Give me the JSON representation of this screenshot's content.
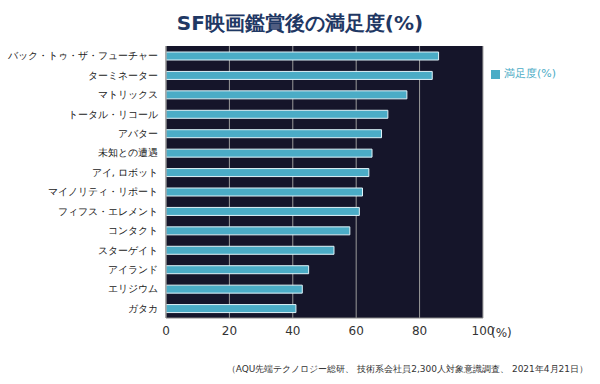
{
  "chart_data": {
    "type": "bar",
    "orientation": "horizontal",
    "title": "SF映画鑑賞後の満足度(%)",
    "categories": [
      "バック・トゥ・ザ・フューチャー",
      "ターミネーター",
      "マトリックス",
      "トータル・リコール",
      "アバター",
      "未知との遭遇",
      "アイ, ロボット",
      "マイノリティ・リポート",
      "フィフス・エレメント",
      "コンタクト",
      "スターゲイト",
      "アイランド",
      "エリジウム",
      "ガタカ"
    ],
    "series": [
      {
        "name": "満足度(%)",
        "color": "#4bacc6",
        "values": [
          86,
          84,
          76,
          70,
          68,
          65,
          64,
          62,
          61,
          58,
          53,
          45,
          43,
          41
        ]
      }
    ],
    "xlim": [
      0,
      100
    ],
    "xticks": [
      0,
      20,
      40,
      60,
      80,
      100
    ],
    "xlabel": "(%)",
    "grid": true,
    "legend": "right",
    "source": "（AQU先端テクノロジー総研、 技術系会社員2,300人対象意識調査、 2021年4月21日）"
  }
}
